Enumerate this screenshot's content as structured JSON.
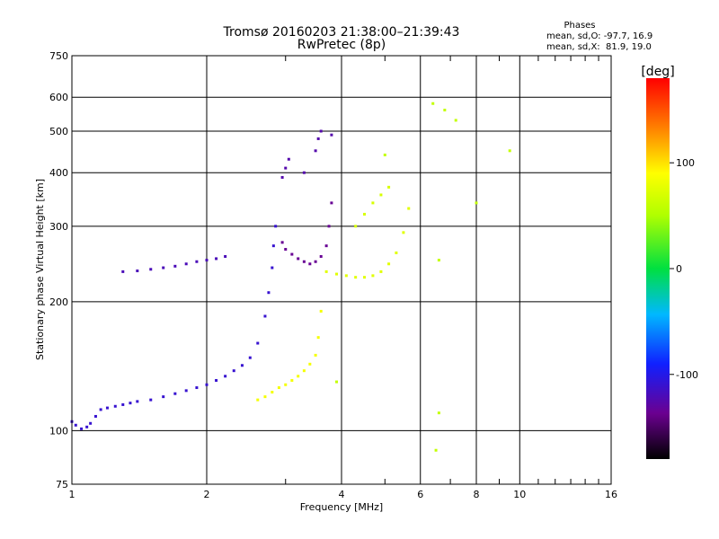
{
  "chart_data": {
    "type": "scatter",
    "title": "Tromsø 20160203 21:38:00–21:39:43",
    "subtitle": "RwPretec (8p)",
    "xlabel": "Frequency [MHz]",
    "ylabel": "Stationary phase Virtual Height [km]",
    "x_scale": "log",
    "y_scale": "log",
    "xlim": [
      1,
      16
    ],
    "ylim": [
      75,
      750
    ],
    "x_ticks": [
      1,
      2,
      4,
      6,
      8,
      10,
      16
    ],
    "y_ticks": [
      75,
      100,
      200,
      300,
      400,
      500,
      600,
      750
    ],
    "grid": true,
    "stats": {
      "heading": "Phases",
      "o_line": "mean, sd,O: -97.7, 16.9",
      "x_line": "mean, sd,X:  81.9, 19.0"
    },
    "colorbar": {
      "label": "[deg]",
      "range": [
        -180,
        180
      ],
      "ticks": [
        -100,
        0,
        100
      ]
    },
    "series": [
      {
        "trace": "o-mode F trace",
        "color_deg": -110,
        "x": [
          1.0,
          1.02,
          1.05,
          1.08,
          1.1,
          1.13,
          1.16,
          1.2,
          1.25,
          1.3,
          1.35,
          1.4,
          1.5,
          1.6,
          1.7,
          1.8,
          1.9,
          2.0,
          2.1,
          2.2,
          2.3,
          2.4,
          2.5,
          2.6,
          2.7,
          2.75,
          2.8,
          2.82,
          2.85
        ],
        "y": [
          105,
          103,
          101,
          102,
          104,
          108,
          112,
          113,
          114,
          115,
          116,
          117,
          118,
          120,
          122,
          124,
          126,
          128,
          131,
          134,
          138,
          142,
          148,
          160,
          185,
          210,
          240,
          270,
          300
        ]
      },
      {
        "trace": "o-mode upper trace",
        "color_deg": -120,
        "x": [
          1.3,
          1.4,
          1.5,
          1.6,
          1.7,
          1.8,
          1.9,
          2.0,
          2.1,
          2.2
        ],
        "y": [
          235,
          236,
          238,
          240,
          242,
          245,
          248,
          250,
          252,
          255
        ]
      },
      {
        "trace": "o-mode F2 cusp",
        "color_deg": -135,
        "x": [
          2.95,
          3.0,
          3.1,
          3.2,
          3.3,
          3.4,
          3.5,
          3.6,
          3.7,
          3.75,
          3.8
        ],
        "y": [
          275,
          265,
          258,
          252,
          248,
          245,
          248,
          255,
          270,
          300,
          340
        ]
      },
      {
        "trace": "o-mode high echoes",
        "color_deg": -125,
        "x": [
          2.95,
          3.0,
          3.05,
          3.3,
          3.5,
          3.55,
          3.6,
          3.8
        ],
        "y": [
          390,
          410,
          430,
          400,
          450,
          480,
          500,
          490
        ]
      },
      {
        "trace": "x-mode trace",
        "color_deg": 85,
        "x": [
          2.6,
          2.7,
          2.8,
          2.9,
          3.0,
          3.1,
          3.2,
          3.3,
          3.4,
          3.5,
          3.55,
          3.6
        ],
        "y": [
          118,
          120,
          123,
          126,
          128,
          131,
          134,
          138,
          143,
          150,
          165,
          190
        ]
      },
      {
        "trace": "x-mode F2 cusp",
        "color_deg": 75,
        "x": [
          3.7,
          3.9,
          4.1,
          4.3,
          4.5,
          4.7,
          4.9,
          5.1,
          5.3,
          5.5,
          5.65
        ],
        "y": [
          235,
          232,
          230,
          228,
          228,
          230,
          235,
          245,
          260,
          290,
          330
        ]
      },
      {
        "trace": "x-mode high echoes",
        "color_deg": 70,
        "x": [
          4.3,
          4.5,
          4.7,
          4.9,
          5.1
        ],
        "y": [
          300,
          320,
          340,
          355,
          370
        ]
      },
      {
        "trace": "scattered echoes",
        "color_deg": 60,
        "x": [
          6.5,
          6.6,
          6.8,
          7.2,
          6.4,
          8.0,
          9.5,
          6.6,
          3.9,
          5.0
        ],
        "y": [
          90,
          110,
          560,
          530,
          580,
          340,
          450,
          250,
          130,
          440
        ]
      }
    ]
  }
}
